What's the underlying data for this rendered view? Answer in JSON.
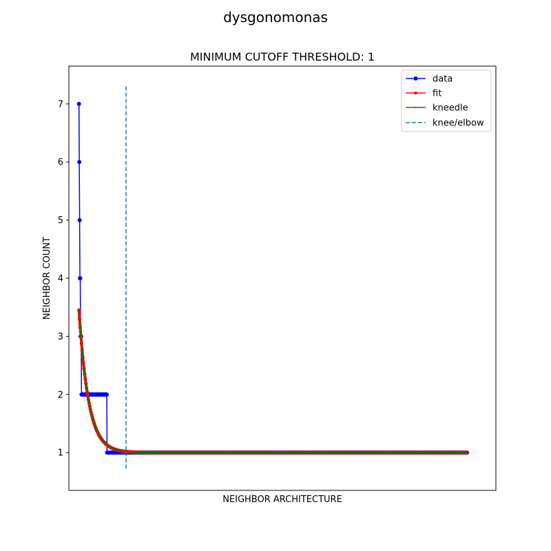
{
  "chart_data": {
    "type": "line",
    "suptitle": "dysgonomonas",
    "title": "MINIMUM CUTOFF THRESHOLD: 1",
    "xlabel": "NEIGHBOR ARCHITECTURE",
    "ylabel": "NEIGHBOR COUNT",
    "xlim": [
      -32,
      1320
    ],
    "ylim": [
      0.35,
      7.65
    ],
    "yticks": [
      1,
      2,
      3,
      4,
      5,
      6,
      7
    ],
    "x_tick_labels_shown": false,
    "grid": false,
    "legend_position": "top-right",
    "knee_x": 149,
    "series": [
      {
        "name": "data",
        "color": "#0000ff",
        "marker": "circle",
        "steps": [
          {
            "x_start": 0,
            "x_end": 0,
            "y": 7
          },
          {
            "x_start": 1,
            "x_end": 1,
            "y": 6
          },
          {
            "x_start": 2,
            "x_end": 2,
            "y": 5
          },
          {
            "x_start": 3,
            "x_end": 4,
            "y": 4
          },
          {
            "x_start": 5,
            "x_end": 7,
            "y": 3
          },
          {
            "x_start": 8,
            "x_end": 88,
            "y": 2
          },
          {
            "x_start": 89,
            "x_end": 1230,
            "y": 1
          }
        ]
      },
      {
        "name": "fit",
        "color": "#ff0000",
        "marker": "small-circle",
        "curve": {
          "type": "exponential_decay",
          "x_start": 0,
          "x_end": 1230,
          "y0": 3.45,
          "asymptote": 1.0,
          "decay_rate": 0.033
        }
      },
      {
        "name": "kneedle",
        "color": "#008000",
        "marker": "tiny-dot",
        "curve": {
          "type": "exponential_decay",
          "x_start": 0,
          "x_end": 1230,
          "y0": 3.45,
          "asymptote": 1.0,
          "decay_rate": 0.033
        }
      },
      {
        "name": "knee/elbow",
        "color": "#1f77b4",
        "linestyle": "dashed"
      }
    ]
  }
}
